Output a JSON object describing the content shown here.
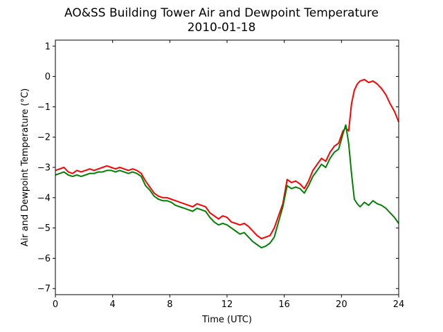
{
  "chart_data": {
    "type": "line",
    "title": "AO&SS Building Tower Air and Dewpoint Temperature",
    "subtitle": "2010-01-18",
    "xlabel": "Time (UTC)",
    "ylabel": "Air and Dewpoint Temperature (°C)",
    "xlim": [
      0,
      24
    ],
    "ylim": [
      -7.2,
      1.2
    ],
    "xticks": [
      0,
      4,
      8,
      12,
      16,
      20,
      24
    ],
    "yticks": [
      1,
      0,
      -1,
      -2,
      -3,
      -4,
      -5,
      -6,
      -7
    ],
    "grid": false,
    "series": [
      {
        "color": "#ff0000",
        "x": [
          0,
          0.3,
          0.6,
          0.9,
          1.2,
          1.5,
          1.8,
          2.1,
          2.4,
          2.7,
          3.0,
          3.3,
          3.6,
          3.9,
          4.2,
          4.5,
          4.8,
          5.1,
          5.4,
          5.7,
          6.0,
          6.3,
          6.6,
          6.9,
          7.2,
          7.5,
          7.8,
          8.1,
          8.4,
          8.7,
          9.0,
          9.3,
          9.6,
          9.9,
          10.2,
          10.5,
          10.8,
          11.1,
          11.4,
          11.7,
          12.0,
          12.3,
          12.6,
          12.9,
          13.2,
          13.5,
          13.8,
          14.1,
          14.4,
          14.7,
          15.0,
          15.3,
          15.6,
          15.9,
          16.2,
          16.5,
          16.8,
          17.1,
          17.4,
          17.7,
          18.0,
          18.3,
          18.6,
          18.9,
          19.2,
          19.5,
          19.8,
          20.1,
          20.3,
          20.5,
          20.7,
          20.9,
          21.1,
          21.3,
          21.6,
          21.9,
          22.2,
          22.5,
          22.8,
          23.1,
          23.4,
          23.7,
          24.0
        ],
        "y": [
          -3.1,
          -3.05,
          -3.0,
          -3.15,
          -3.2,
          -3.1,
          -3.15,
          -3.1,
          -3.05,
          -3.1,
          -3.05,
          -3.0,
          -2.95,
          -3.0,
          -3.05,
          -3.0,
          -3.05,
          -3.1,
          -3.05,
          -3.1,
          -3.2,
          -3.45,
          -3.65,
          -3.85,
          -3.95,
          -4.0,
          -4.0,
          -4.05,
          -4.1,
          -4.15,
          -4.2,
          -4.25,
          -4.3,
          -4.2,
          -4.25,
          -4.3,
          -4.5,
          -4.6,
          -4.7,
          -4.6,
          -4.65,
          -4.8,
          -4.85,
          -4.9,
          -4.85,
          -4.95,
          -5.1,
          -5.25,
          -5.35,
          -5.3,
          -5.25,
          -5.0,
          -4.6,
          -4.2,
          -3.4,
          -3.5,
          -3.45,
          -3.55,
          -3.7,
          -3.45,
          -3.1,
          -2.9,
          -2.7,
          -2.8,
          -2.5,
          -2.3,
          -2.2,
          -1.8,
          -1.7,
          -1.8,
          -0.9,
          -0.45,
          -0.25,
          -0.15,
          -0.1,
          -0.2,
          -0.15,
          -0.25,
          -0.4,
          -0.6,
          -0.9,
          -1.15,
          -1.5
        ]
      },
      {
        "color": "#008000",
        "x": [
          0,
          0.3,
          0.6,
          0.9,
          1.2,
          1.5,
          1.8,
          2.1,
          2.4,
          2.7,
          3.0,
          3.3,
          3.6,
          3.9,
          4.2,
          4.5,
          4.8,
          5.1,
          5.4,
          5.7,
          6.0,
          6.3,
          6.6,
          6.9,
          7.2,
          7.5,
          7.8,
          8.1,
          8.4,
          8.7,
          9.0,
          9.3,
          9.6,
          9.9,
          10.2,
          10.5,
          10.8,
          11.1,
          11.4,
          11.7,
          12.0,
          12.3,
          12.6,
          12.9,
          13.2,
          13.5,
          13.8,
          14.1,
          14.4,
          14.7,
          15.0,
          15.3,
          15.6,
          15.9,
          16.2,
          16.5,
          16.8,
          17.1,
          17.4,
          17.7,
          18.0,
          18.3,
          18.6,
          18.9,
          19.2,
          19.5,
          19.8,
          20.1,
          20.3,
          20.5,
          20.7,
          20.9,
          21.1,
          21.3,
          21.6,
          21.9,
          22.2,
          22.5,
          22.8,
          23.1,
          23.4,
          23.7,
          24.0
        ],
        "y": [
          -3.25,
          -3.2,
          -3.15,
          -3.25,
          -3.3,
          -3.25,
          -3.3,
          -3.25,
          -3.2,
          -3.2,
          -3.15,
          -3.15,
          -3.1,
          -3.1,
          -3.15,
          -3.1,
          -3.15,
          -3.2,
          -3.15,
          -3.2,
          -3.3,
          -3.6,
          -3.75,
          -3.95,
          -4.05,
          -4.1,
          -4.1,
          -4.15,
          -4.25,
          -4.3,
          -4.35,
          -4.4,
          -4.45,
          -4.35,
          -4.4,
          -4.45,
          -4.65,
          -4.8,
          -4.9,
          -4.85,
          -4.9,
          -5.0,
          -5.1,
          -5.2,
          -5.15,
          -5.3,
          -5.45,
          -5.55,
          -5.65,
          -5.6,
          -5.5,
          -5.3,
          -4.8,
          -4.3,
          -3.6,
          -3.7,
          -3.65,
          -3.7,
          -3.85,
          -3.6,
          -3.3,
          -3.1,
          -2.9,
          -3.0,
          -2.7,
          -2.5,
          -2.4,
          -1.9,
          -1.6,
          -2.2,
          -3.2,
          -4.05,
          -4.2,
          -4.3,
          -4.15,
          -4.25,
          -4.1,
          -4.2,
          -4.25,
          -4.35,
          -4.5,
          -4.65,
          -4.85
        ]
      }
    ]
  }
}
